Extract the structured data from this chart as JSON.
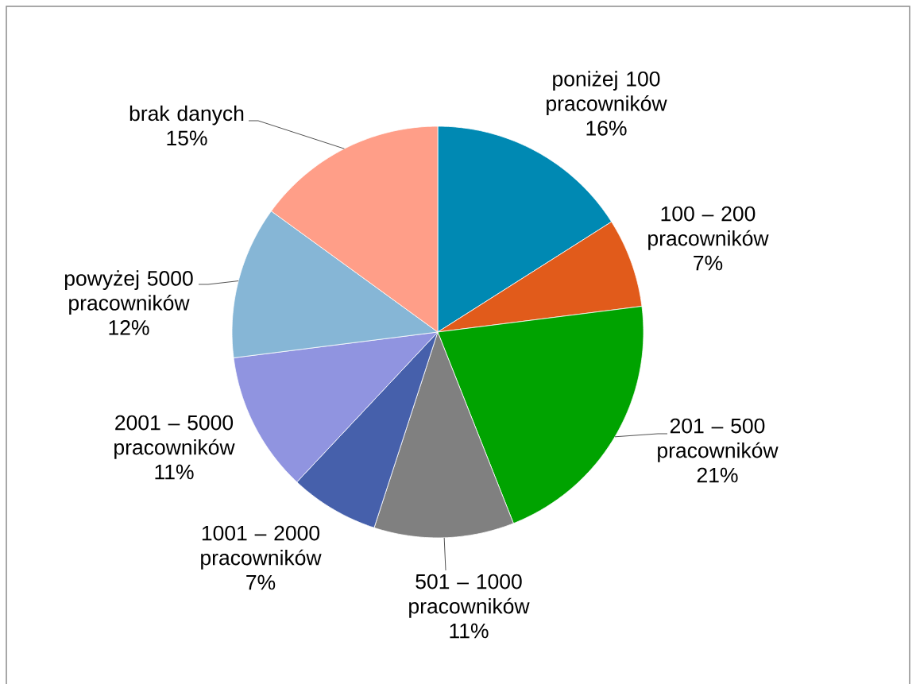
{
  "chart_data": {
    "type": "pie",
    "categories": [
      "poniżej 100 pracowników",
      "100 – 200 pracowników",
      "201 – 500 pracowników",
      "501 – 1000 pracowników",
      "1001 – 2000 pracowników",
      "2001 – 5000 pracowników",
      "powyżej 5000 pracowników",
      "brak danych"
    ],
    "values": [
      16,
      7,
      21,
      11,
      7,
      11,
      12,
      15
    ],
    "value_labels": [
      "16%",
      "7%",
      "21%",
      "11%",
      "7%",
      "11%",
      "12%",
      "15%"
    ],
    "colors": [
      "#0089b3",
      "#e15b1b",
      "#00a300",
      "#808080",
      "#4660ab",
      "#9094e0",
      "#86b6d6",
      "#ff9e88"
    ]
  }
}
